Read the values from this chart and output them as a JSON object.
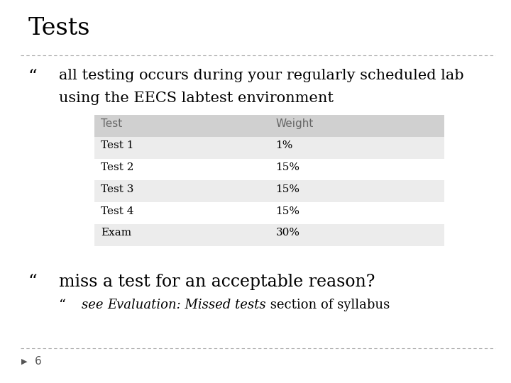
{
  "title": "Tests",
  "bullet1_line1": "all testing occurs during your regularly scheduled lab",
  "bullet1_line2": "using the EECS labtest environment",
  "table_headers": [
    "Test",
    "Weight"
  ],
  "table_rows": [
    [
      "Test 1",
      "1%"
    ],
    [
      "Test 2",
      "15%"
    ],
    [
      "Test 3",
      "15%"
    ],
    [
      "Test 4",
      "15%"
    ],
    [
      "Exam",
      "30%"
    ]
  ],
  "table_header_bg": "#d0d0d0",
  "table_row_bg_odd": "#ececec",
  "table_row_bg_even": "#ffffff",
  "bullet2": "miss a test for an acceptable reason?",
  "sub_bullet_prefix": "see ",
  "sub_bullet_italic": "Evaluation: Missed tests",
  "sub_bullet_suffix": " section of syllabus",
  "page_number": "6",
  "bg_color": "#ffffff",
  "title_color": "#000000",
  "text_color": "#000000",
  "header_text_color": "#666666",
  "dashed_line_color": "#aaaaaa",
  "title_fontsize": 24,
  "bullet1_fontsize": 15,
  "bullet2_fontsize": 17,
  "table_fontsize": 11,
  "sub_bullet_fontsize": 13,
  "page_num_fontsize": 11
}
